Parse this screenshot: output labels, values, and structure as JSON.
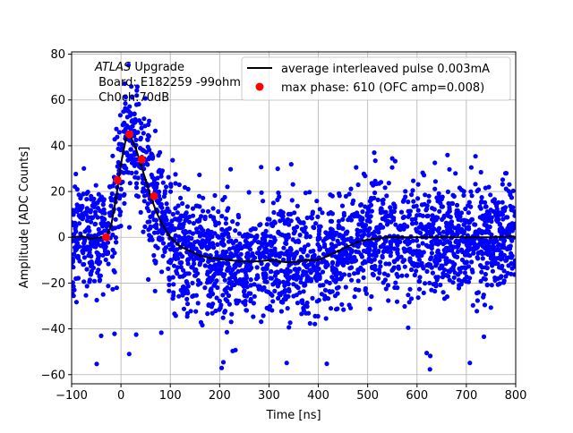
{
  "chart_data": {
    "type": "scatter",
    "xlabel": "Time [ns]",
    "ylabel": "Amplitude [ADC Counts]",
    "xlim": [
      -100,
      800
    ],
    "ylim": [
      -64,
      81
    ],
    "xticks": [
      -100,
      0,
      100,
      200,
      300,
      400,
      500,
      600,
      700,
      800
    ],
    "yticks": [
      -60,
      -40,
      -20,
      0,
      20,
      40,
      60,
      80
    ],
    "grid": true,
    "legend_position": "top-right",
    "annotation_lines": [
      "ATLAS Upgrade",
      " Board: E182259 -99ohm",
      " Ch0ch:70dB"
    ],
    "series": [
      {
        "name": "average interleaved pulse 0.003mA",
        "kind": "line",
        "color": "#000000",
        "x": [
          -100,
          -80,
          -60,
          -40,
          -30,
          -20,
          -10,
          0,
          10,
          15,
          20,
          30,
          40,
          50,
          60,
          70,
          80,
          100,
          120,
          140,
          160,
          180,
          200,
          220,
          240,
          260,
          280,
          300,
          320,
          340,
          360,
          380,
          400,
          420,
          440,
          460,
          480,
          500,
          520,
          540,
          560,
          600,
          650,
          700,
          750,
          790,
          800
        ],
        "y": [
          0,
          0.5,
          -0.5,
          0,
          0.5,
          5,
          17,
          32,
          43,
          45,
          44,
          39,
          32,
          25,
          18,
          12,
          7,
          0,
          -4,
          -6,
          -8,
          -9,
          -9.5,
          -10,
          -10.5,
          -10.5,
          -10.5,
          -10,
          -10.5,
          -11,
          -10.5,
          -10,
          -10,
          -8,
          -6,
          -4,
          -2,
          -1,
          -0.5,
          0,
          0,
          0,
          0,
          0,
          0,
          0.5,
          0
        ]
      },
      {
        "name": "max phase: 610 (OFC amp=0.008)",
        "kind": "markers",
        "color": "#ff0000",
        "x": [
          -30,
          -7,
          17,
          42,
          67
        ],
        "y": [
          0,
          25,
          45,
          34,
          18
        ]
      },
      {
        "name": "",
        "kind": "scatter-cloud",
        "color": "#0000ff",
        "spread": 12,
        "outlier_range": [
          -58,
          37
        ],
        "note": "dense cloud of individual samples scattered around the average pulse"
      }
    ]
  }
}
